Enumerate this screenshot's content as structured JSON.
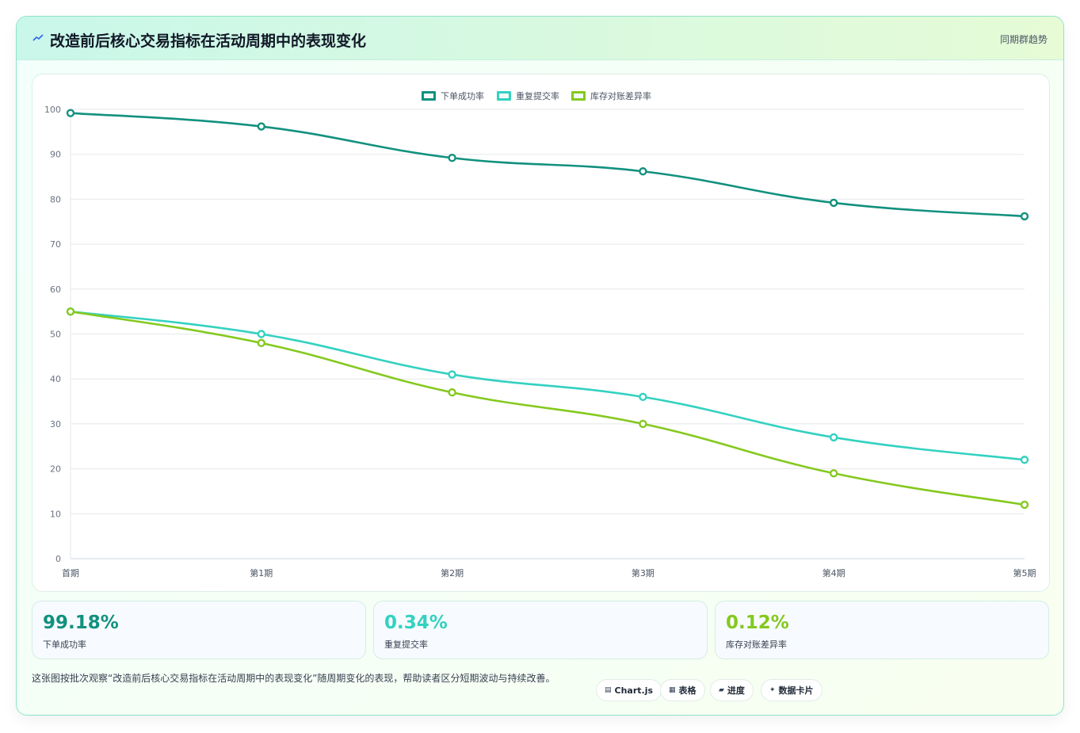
{
  "header": {
    "title": "改造前后核心交易指标在活动周期中的表现变化",
    "right_label": "同期群趋势",
    "icon": "trend-icon"
  },
  "chart_data": {
    "type": "line",
    "categories": [
      "首期",
      "第1期",
      "第2期",
      "第3期",
      "第4期",
      "第5期"
    ],
    "series": [
      {
        "name": "下单成功率",
        "color": "#11917e",
        "values": [
          99.18,
          96.2,
          89.2,
          86.2,
          79.2,
          76.2
        ]
      },
      {
        "name": "重复提交率",
        "color": "#33d1c0",
        "values": [
          55,
          50,
          41,
          36,
          27,
          22
        ]
      },
      {
        "name": "库存对账差异率",
        "color": "#84c91e",
        "values": [
          55,
          48,
          37,
          30,
          19,
          12
        ]
      }
    ],
    "ylim": [
      0,
      100
    ],
    "yticks": [
      0,
      10,
      20,
      30,
      40,
      50,
      60,
      70,
      80,
      90,
      100
    ],
    "grid": true,
    "legend": "top-center"
  },
  "stats": [
    {
      "value": "99.18%",
      "label": "下单成功率",
      "color": "#11917e"
    },
    {
      "value": "0.34%",
      "label": "重复提交率",
      "color": "#33d1c0"
    },
    {
      "value": "0.12%",
      "label": "库存对账差异率",
      "color": "#84c91e"
    }
  ],
  "footnote": "这张图按批次观察“改造前后核心交易指标在活动周期中的表现变化”随周期变化的表现，帮助读者区分短期波动与持续改善。",
  "pills": [
    {
      "icon": "chart-icon",
      "glyph": "▤",
      "label": "Chart.js"
    },
    {
      "icon": "table-icon",
      "glyph": "▦",
      "label": "表格"
    },
    {
      "icon": "progress-icon",
      "glyph": "▰",
      "label": "进度"
    },
    {
      "icon": "card-icon",
      "glyph": "✦",
      "label": "数据卡片"
    }
  ]
}
